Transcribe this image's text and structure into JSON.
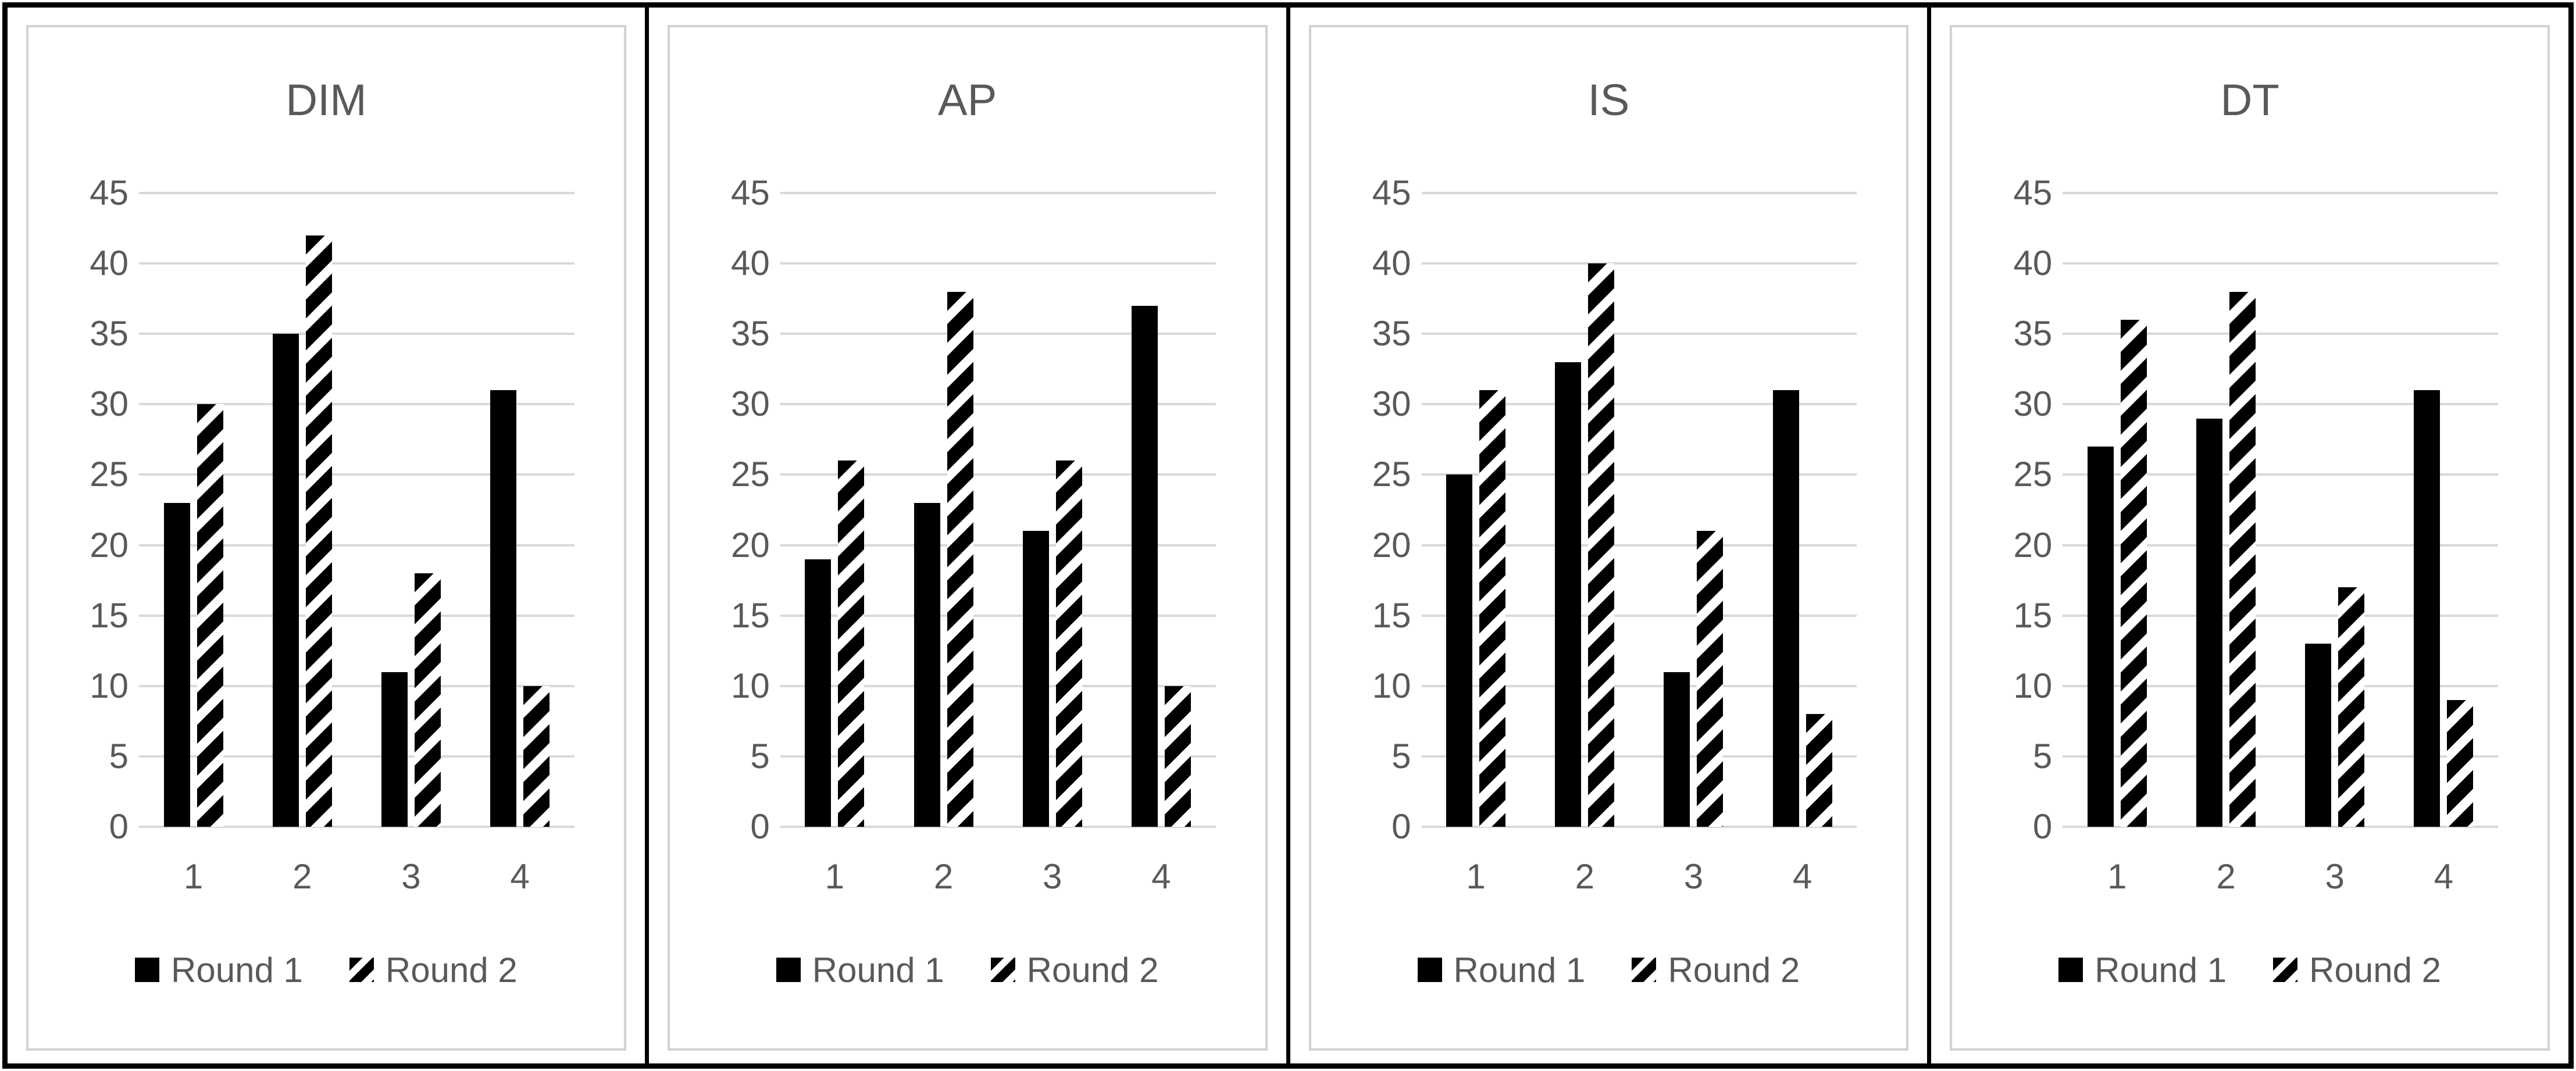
{
  "page": {
    "background": "#ffffff",
    "outer_border_color": "#000000",
    "chart_border_color": "#d2d2d2"
  },
  "colors": {
    "label_text": "#595959",
    "gridline": "#d9d9d9",
    "bar_solid": "#000000",
    "bar_hatch_foreground": "#000000",
    "bar_hatch_background": "#ffffff"
  },
  "axis": {
    "y_ticks": [
      "45",
      "40",
      "35",
      "30",
      "25",
      "20",
      "15",
      "10",
      "5",
      "0"
    ],
    "x_labels": [
      "1",
      "2",
      "3",
      "4"
    ]
  },
  "legend": {
    "items": [
      {
        "name": "Round 1",
        "style": "solid"
      },
      {
        "name": "Round 2",
        "style": "hatch"
      }
    ]
  },
  "chart_data": [
    {
      "type": "bar",
      "title": "DIM",
      "categories": [
        "1",
        "2",
        "3",
        "4"
      ],
      "series": [
        {
          "name": "Round 1",
          "style": "solid",
          "values": [
            23,
            35,
            11,
            31
          ]
        },
        {
          "name": "Round 2",
          "style": "hatch",
          "values": [
            30,
            42,
            18,
            10
          ]
        }
      ],
      "ylim": [
        0,
        45
      ],
      "ytick_step": 5,
      "grid": true,
      "legend_position": "bottom"
    },
    {
      "type": "bar",
      "title": "AP",
      "categories": [
        "1",
        "2",
        "3",
        "4"
      ],
      "series": [
        {
          "name": "Round 1",
          "style": "solid",
          "values": [
            19,
            23,
            21,
            37
          ]
        },
        {
          "name": "Round 2",
          "style": "hatch",
          "values": [
            26,
            38,
            26,
            10
          ]
        }
      ],
      "ylim": [
        0,
        45
      ],
      "ytick_step": 5,
      "grid": true,
      "legend_position": "bottom"
    },
    {
      "type": "bar",
      "title": "IS",
      "categories": [
        "1",
        "2",
        "3",
        "4"
      ],
      "series": [
        {
          "name": "Round 1",
          "style": "solid",
          "values": [
            25,
            33,
            11,
            31
          ]
        },
        {
          "name": "Round 2",
          "style": "hatch",
          "values": [
            31,
            40,
            21,
            8
          ]
        }
      ],
      "ylim": [
        0,
        45
      ],
      "ytick_step": 5,
      "grid": true,
      "legend_position": "bottom"
    },
    {
      "type": "bar",
      "title": "DT",
      "categories": [
        "1",
        "2",
        "3",
        "4"
      ],
      "series": [
        {
          "name": "Round 1",
          "style": "solid",
          "values": [
            27,
            29,
            13,
            31
          ]
        },
        {
          "name": "Round 2",
          "style": "hatch",
          "values": [
            36,
            38,
            17,
            9
          ]
        }
      ],
      "ylim": [
        0,
        45
      ],
      "ytick_step": 5,
      "grid": true,
      "legend_position": "bottom"
    }
  ]
}
